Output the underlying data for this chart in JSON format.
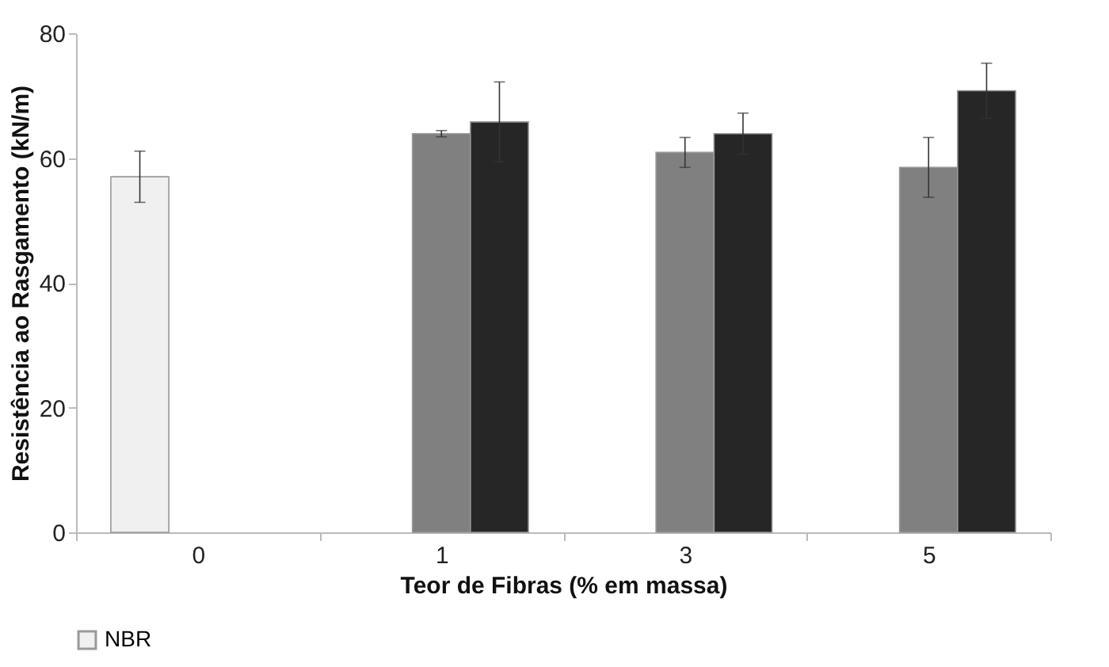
{
  "chart_data": {
    "type": "bar",
    "xlabel": "Teor de Fibras (% em massa)",
    "ylabel": "Resistência ao Rasgamento (kN/m)",
    "categories": [
      "0",
      "1",
      "3",
      "5"
    ],
    "series": [
      {
        "name": "NBR",
        "color": "#f0f0f0",
        "values": [
          57.0,
          null,
          null,
          null
        ],
        "errors": [
          4.1,
          null,
          null,
          null
        ]
      },
      {
        "color": "#808080",
        "values": [
          null,
          63.9,
          60.9,
          58.5
        ],
        "errors": [
          null,
          0.5,
          2.4,
          4.8
        ]
      },
      {
        "color": "#262626",
        "values": [
          null,
          65.8,
          63.9,
          70.8
        ],
        "errors": [
          null,
          6.4,
          3.3,
          4.4
        ]
      }
    ],
    "ylim": [
      0,
      80
    ],
    "yticks": [
      0,
      20,
      40,
      60,
      80
    ],
    "grid": false,
    "legend": "bottom"
  }
}
